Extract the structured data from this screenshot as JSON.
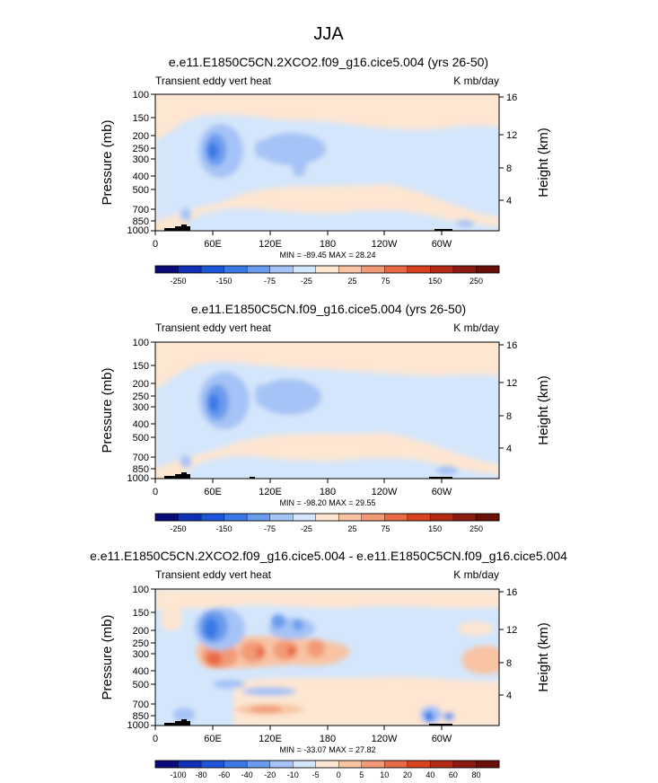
{
  "figure": {
    "title": "JJA"
  },
  "chart_data": [
    {
      "type": "heatmap",
      "title": "e.e11.E1850C5CN.2XCO2.f09_g16.cice5.004 (yrs 26-50)",
      "left_label": "Transient eddy vert heat",
      "units": "K mb/day",
      "ylabel": "Pressure (mb)",
      "ylabel_right": "Height (km)",
      "y_ticks": [
        "100",
        "150",
        "200",
        "250",
        "300",
        "400",
        "500",
        "700",
        "850",
        "1000"
      ],
      "y_right_ticks": [
        "16",
        "12",
        "8",
        "4"
      ],
      "x_ticks": [
        "0",
        "60E",
        "120E",
        "180",
        "120W",
        "60W"
      ],
      "stats": "MIN = -89.45  MAX = 28.24",
      "colorbar": {
        "labels": [
          "-250",
          "-150",
          "-75",
          "-25",
          "25",
          "75",
          "150",
          "250"
        ]
      }
    },
    {
      "type": "heatmap",
      "title": "e.e11.E1850C5CN.f09_g16.cice5.004 (yrs 26-50)",
      "left_label": "Transient eddy vert heat",
      "units": "K mb/day",
      "ylabel": "Pressure (mb)",
      "ylabel_right": "Height (km)",
      "y_ticks": [
        "100",
        "150",
        "200",
        "250",
        "300",
        "400",
        "500",
        "700",
        "850",
        "1000"
      ],
      "y_right_ticks": [
        "16",
        "12",
        "8",
        "4"
      ],
      "x_ticks": [
        "0",
        "60E",
        "120E",
        "180",
        "120W",
        "60W"
      ],
      "stats": "MIN = -98.20  MAX = 29.55",
      "colorbar": {
        "labels": [
          "-250",
          "-150",
          "-75",
          "-25",
          "25",
          "75",
          "150",
          "250"
        ]
      }
    },
    {
      "type": "heatmap",
      "title": "e.e11.E1850C5CN.2XCO2.f09_g16.cice5.004 - e.e11.E1850C5CN.f09_g16.cice5.004",
      "left_label": "Transient eddy vert heat",
      "units": "K mb/day",
      "ylabel": "Pressure (mb)",
      "ylabel_right": "Height (km)",
      "y_ticks": [
        "100",
        "150",
        "200",
        "250",
        "300",
        "400",
        "500",
        "700",
        "850",
        "1000"
      ],
      "y_right_ticks": [
        "16",
        "12",
        "8",
        "4"
      ],
      "x_ticks": [
        "0",
        "60E",
        "120E",
        "180",
        "120W",
        "60W"
      ],
      "stats": "MIN = -33.07  MAX = 27.82",
      "colorbar": {
        "labels": [
          "-100",
          "-80",
          "-60",
          "-40",
          "-20",
          "-10",
          "-5",
          "0",
          "5",
          "10",
          "20",
          "40",
          "60",
          "80",
          "100"
        ]
      }
    }
  ],
  "colors": {
    "scale": [
      "#0a0a7a",
      "#1030b8",
      "#1c55d8",
      "#3a78e6",
      "#6b9bee",
      "#a5c3f6",
      "#d4e6fb",
      "#fde6d2",
      "#f8c4a4",
      "#f29a75",
      "#e86a45",
      "#d8421e",
      "#b52a15",
      "#8c1a10",
      "#6a0e0a"
    ]
  }
}
